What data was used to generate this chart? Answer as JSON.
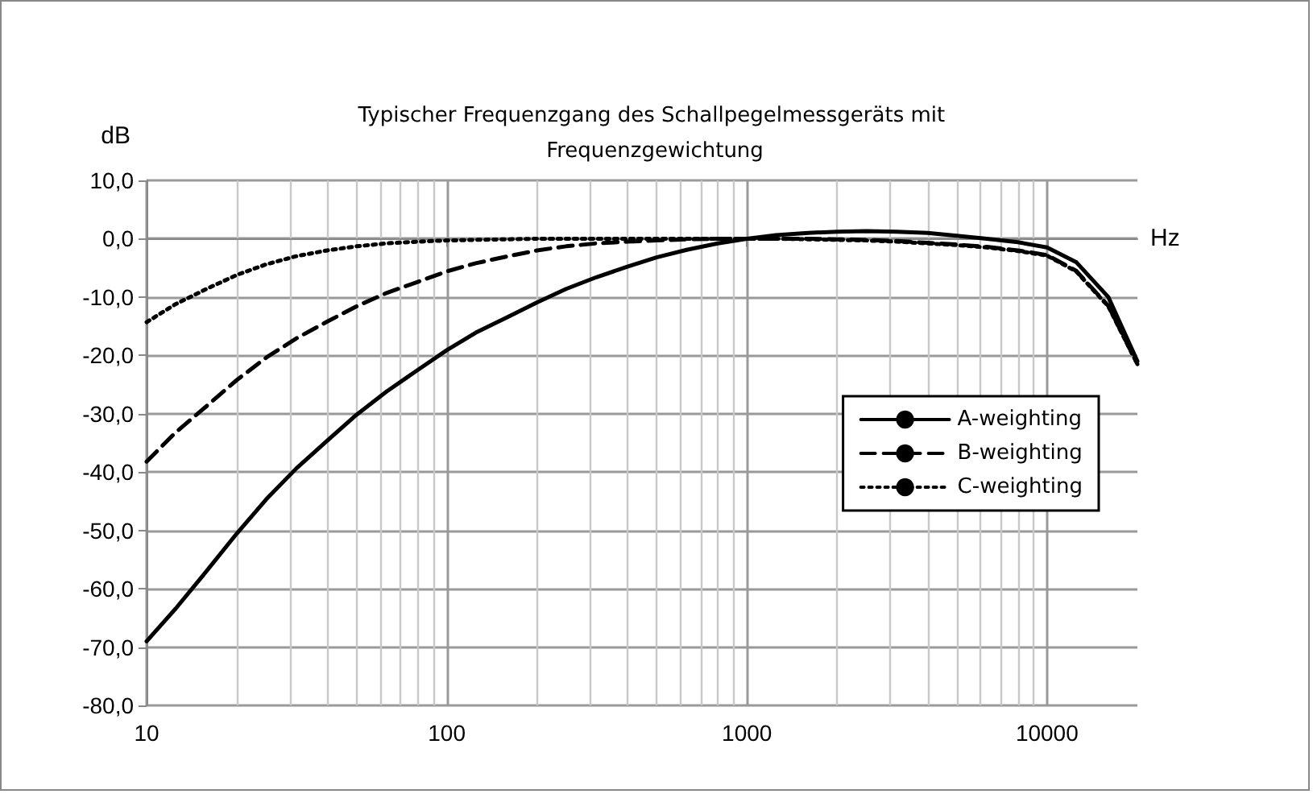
{
  "chart_data": {
    "type": "line",
    "title": "Typischer Frequenzgang des Schallpegelmessgeräts mit Frequenzgewichtung",
    "xlabel": "Hz",
    "ylabel": "dB",
    "x": [
      10,
      12.5,
      16,
      20,
      25,
      31.5,
      40,
      50,
      63,
      80,
      100,
      125,
      160,
      200,
      250,
      315,
      400,
      500,
      630,
      800,
      1000,
      1250,
      1600,
      2000,
      2500,
      3150,
      4000,
      5000,
      6300,
      8000,
      10000,
      12500,
      16000,
      20000
    ],
    "series": [
      {
        "name": "A-weighting",
        "color": "#000000",
        "line_style": "solid",
        "values": [
          -69,
          -63.4,
          -56.7,
          -50.5,
          -44.7,
          -39.4,
          -34.6,
          -30.2,
          -26.2,
          -22.5,
          -19.1,
          -16.1,
          -13.4,
          -10.9,
          -8.6,
          -6.6,
          -4.8,
          -3.2,
          -1.9,
          -0.8,
          0,
          0.6,
          1,
          1.2,
          1.3,
          1.2,
          1,
          0.5,
          0,
          -0.6,
          -1.5,
          -4,
          -10,
          -21
        ]
      },
      {
        "name": "B-weighting",
        "color": "#000000",
        "line_style": "dashed",
        "values": [
          -38.2,
          -33.2,
          -28.5,
          -24.2,
          -20.4,
          -17.1,
          -14.2,
          -11.6,
          -9.3,
          -7.4,
          -5.6,
          -4.2,
          -3,
          -2,
          -1.3,
          -0.8,
          -0.5,
          -0.3,
          -0.1,
          0,
          0,
          0,
          0,
          -0.1,
          -0.2,
          -0.4,
          -0.7,
          -1,
          -1.4,
          -2,
          -2.8,
          -5.5,
          -11.5,
          -21.5
        ]
      },
      {
        "name": "C-weighting",
        "color": "#000000",
        "line_style": "dotted",
        "values": [
          -14.3,
          -11.2,
          -8.5,
          -6.2,
          -4.4,
          -3,
          -2,
          -1.3,
          -0.8,
          -0.5,
          -0.3,
          -0.2,
          -0.1,
          0,
          0,
          0,
          0,
          0,
          0,
          0,
          0,
          0,
          -0.1,
          -0.2,
          -0.3,
          -0.5,
          -0.8,
          -1.1,
          -1.5,
          -2.1,
          -2.9,
          -5.6,
          -11.6,
          -21.5
        ]
      }
    ],
    "log": "x",
    "xlim": [
      10,
      20000
    ],
    "xticks": [
      10,
      100,
      1000,
      10000
    ],
    "ylim": [
      -80,
      10
    ],
    "yticks": [
      {
        "value": -80,
        "label": "-80,0"
      },
      {
        "value": -70,
        "label": "-70,0"
      },
      {
        "value": -60,
        "label": "-60,0"
      },
      {
        "value": -50,
        "label": "-50,0"
      },
      {
        "value": -40,
        "label": "-40,0"
      },
      {
        "value": -30,
        "label": "-30,0"
      },
      {
        "value": -20,
        "label": "-20,0"
      },
      {
        "value": -10,
        "label": "-10,0"
      },
      {
        "value": 0,
        "label": "0,0"
      },
      {
        "value": 10,
        "label": "10,0"
      }
    ],
    "grid": true,
    "legend": "right",
    "marker": "none"
  }
}
